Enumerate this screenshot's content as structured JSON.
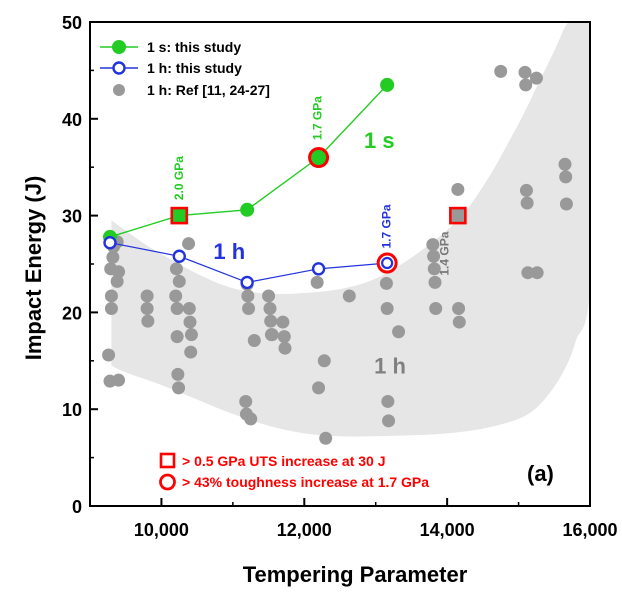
{
  "chart_data": {
    "type": "scatter",
    "title": "",
    "xlabel": "Tempering Parameter",
    "ylabel": "Impact Energy (J)",
    "xlim": [
      9000,
      16000
    ],
    "ylim": [
      0,
      50
    ],
    "x_ticks": [
      10000,
      12000,
      14000,
      16000
    ],
    "x_tick_labels": [
      "10,000",
      "12,000",
      "14,000",
      "16,000"
    ],
    "y_ticks": [
      0,
      10,
      20,
      30,
      40,
      50
    ],
    "y_tick_labels": [
      "0",
      "10",
      "20",
      "30",
      "40",
      "50"
    ],
    "grid": false,
    "legend_position": "top-left",
    "panel_label": "(a)",
    "colors": {
      "series_1s": "#22cc22",
      "series_1h": "#2233dd",
      "series_ref": "#999999",
      "band": "#e6e6e6",
      "highlight": "#ff0000"
    },
    "series": [
      {
        "name": "1 s: this study",
        "color": "#22cc22",
        "marker": "filled-circle",
        "line": true,
        "x": [
          9280,
          10250,
          11200,
          12200,
          13160
        ],
        "y": [
          27.8,
          30.0,
          30.6,
          36.0,
          43.5
        ]
      },
      {
        "name": "1 h: this study",
        "color": "#2233dd",
        "marker": "open-circle",
        "line": true,
        "x": [
          9280,
          10250,
          11200,
          12200,
          13160
        ],
        "y": [
          27.2,
          25.8,
          23.1,
          24.5,
          25.1
        ]
      },
      {
        "name": "1 h: Ref [11, 24-27]",
        "color": "#999999",
        "marker": "filled-circle",
        "line": false,
        "x": [
          9260,
          9280,
          9290,
          9300,
          9300,
          9320,
          9330,
          9380,
          9380,
          9400,
          9400,
          9800,
          9800,
          9810,
          10200,
          10210,
          10220,
          10220,
          10230,
          10240,
          10250,
          10380,
          10390,
          10400,
          10410,
          10420,
          11180,
          11190,
          11200,
          11210,
          11220,
          11250,
          11300,
          11500,
          11520,
          11530,
          11540,
          11550,
          11700,
          11720,
          11730,
          12180,
          12200,
          12280,
          12300,
          12630,
          13150,
          13160,
          13170,
          13180,
          13320,
          13800,
          13810,
          13820,
          13830,
          13840,
          14150,
          14160,
          14170,
          14750,
          15090,
          15100,
          15110,
          15120,
          15130,
          15250,
          15260,
          15650,
          15660,
          15670
        ],
        "y": [
          15.6,
          12.9,
          24.5,
          21.7,
          20.4,
          25.7,
          26.8,
          27.3,
          23.2,
          24.2,
          13.0,
          21.7,
          20.4,
          19.1,
          21.7,
          24.5,
          20.4,
          17.5,
          13.6,
          12.2,
          23.2,
          27.1,
          20.4,
          19.0,
          15.9,
          17.7,
          10.8,
          9.5,
          22.9,
          21.7,
          20.4,
          9.0,
          17.1,
          21.7,
          20.4,
          19.1,
          17.7,
          17.7,
          19.0,
          17.5,
          16.3,
          23.1,
          12.2,
          15.0,
          7.0,
          21.7,
          23.0,
          20.4,
          10.8,
          8.8,
          18.0,
          27.0,
          25.8,
          24.5,
          23.1,
          20.4,
          32.7,
          20.4,
          19.0,
          44.9,
          44.8,
          43.5,
          32.6,
          31.3,
          24.1,
          44.2,
          24.1,
          35.3,
          34.0,
          31.2
        ]
      }
    ],
    "band": {
      "label": "1 h",
      "upper": {
        "x": [
          9300,
          10000,
          11000,
          12000,
          13000,
          14000,
          14500,
          15000,
          15300,
          15500,
          15700,
          15900,
          16000
        ],
        "y": [
          29.5,
          26.0,
          22.5,
          22.0,
          23.5,
          28.5,
          33.0,
          39.5,
          44.0,
          47.0,
          50.0,
          50.0,
          50.0
        ]
      },
      "lower": {
        "x": [
          16000,
          15800,
          15600,
          15300,
          15000,
          14500,
          14000,
          13500,
          13000,
          12500,
          12000,
          11500,
          11000,
          10500,
          10000,
          9500,
          9300
        ],
        "y": [
          23.0,
          17.0,
          13.5,
          10.5,
          9.0,
          8.0,
          7.5,
          7.3,
          7.2,
          7.2,
          7.5,
          8.3,
          9.5,
          11.0,
          12.5,
          13.8,
          14.5
        ]
      }
    },
    "highlight_markers": [
      {
        "shape": "square",
        "x": 10250,
        "y": 30.0,
        "fill": "#22cc22"
      },
      {
        "shape": "circle",
        "x": 12200,
        "y": 36.0,
        "fill": "#22cc22"
      },
      {
        "shape": "circle",
        "x": 13160,
        "y": 25.1,
        "fill": "#ffffff"
      },
      {
        "shape": "square",
        "x": 14150,
        "y": 30.0,
        "fill": "#999999"
      }
    ],
    "annotations": [
      {
        "text": "2.0 GPa",
        "x": 10300,
        "y": 31.6,
        "color": "#22cc22",
        "rotate": true,
        "size": "small"
      },
      {
        "text": "1.7 GPa",
        "x": 12240,
        "y": 37.8,
        "color": "#22cc22",
        "rotate": true,
        "size": "small"
      },
      {
        "text": "1.7 GPa",
        "x": 13210,
        "y": 26.6,
        "color": "#2233dd",
        "rotate": true,
        "size": "small"
      },
      {
        "text": "1.4 GPa",
        "x": 14020,
        "y": 23.8,
        "color": "#777777",
        "rotate": true,
        "size": "small"
      },
      {
        "text": "1 s",
        "x": 13050,
        "y": 37.0,
        "color": "#22cc22",
        "rotate": false,
        "size": "big"
      },
      {
        "text": "1 h",
        "x": 10950,
        "y": 25.5,
        "color": "#2233dd",
        "rotate": false,
        "size": "big"
      },
      {
        "text": "1 h",
        "x": 13200,
        "y": 13.7,
        "color": "#808080",
        "rotate": false,
        "size": "big"
      }
    ],
    "notes": [
      {
        "shape": "square",
        "text": "> 0.5 GPa UTS increase at 30 J"
      },
      {
        "shape": "circle",
        "text": "> 43% toughness increase at 1.7 GPa"
      }
    ]
  }
}
